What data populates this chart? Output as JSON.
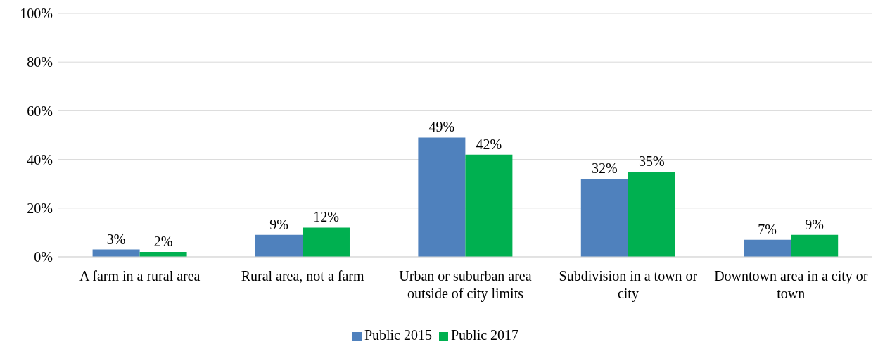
{
  "chart_data": {
    "type": "bar",
    "categories": [
      "A farm in a rural area",
      "Rural area, not a farm",
      "Urban or suburban area outside of city limits",
      "Subdivision in a town or city",
      "Downtown area in a city or town"
    ],
    "series": [
      {
        "name": "Public 2015",
        "color": "#4f81bd",
        "values": [
          3,
          9,
          49,
          32,
          7
        ],
        "value_labels": [
          "3%",
          "9%",
          "49%",
          "32%",
          "7%"
        ]
      },
      {
        "name": "Public 2017",
        "color": "#00b050",
        "values": [
          2,
          12,
          42,
          35,
          9
        ],
        "value_labels": [
          "2%",
          "12%",
          "42%",
          "35%",
          "9%"
        ]
      }
    ],
    "ylim": [
      0,
      100
    ],
    "yticks": [
      {
        "value": 0,
        "label": "0%"
      },
      {
        "value": 20,
        "label": "20%"
      },
      {
        "value": 40,
        "label": "40%"
      },
      {
        "value": 60,
        "label": "60%"
      },
      {
        "value": 80,
        "label": "80%"
      },
      {
        "value": 100,
        "label": "100%"
      }
    ],
    "grid": "y",
    "legend": "bottom"
  }
}
